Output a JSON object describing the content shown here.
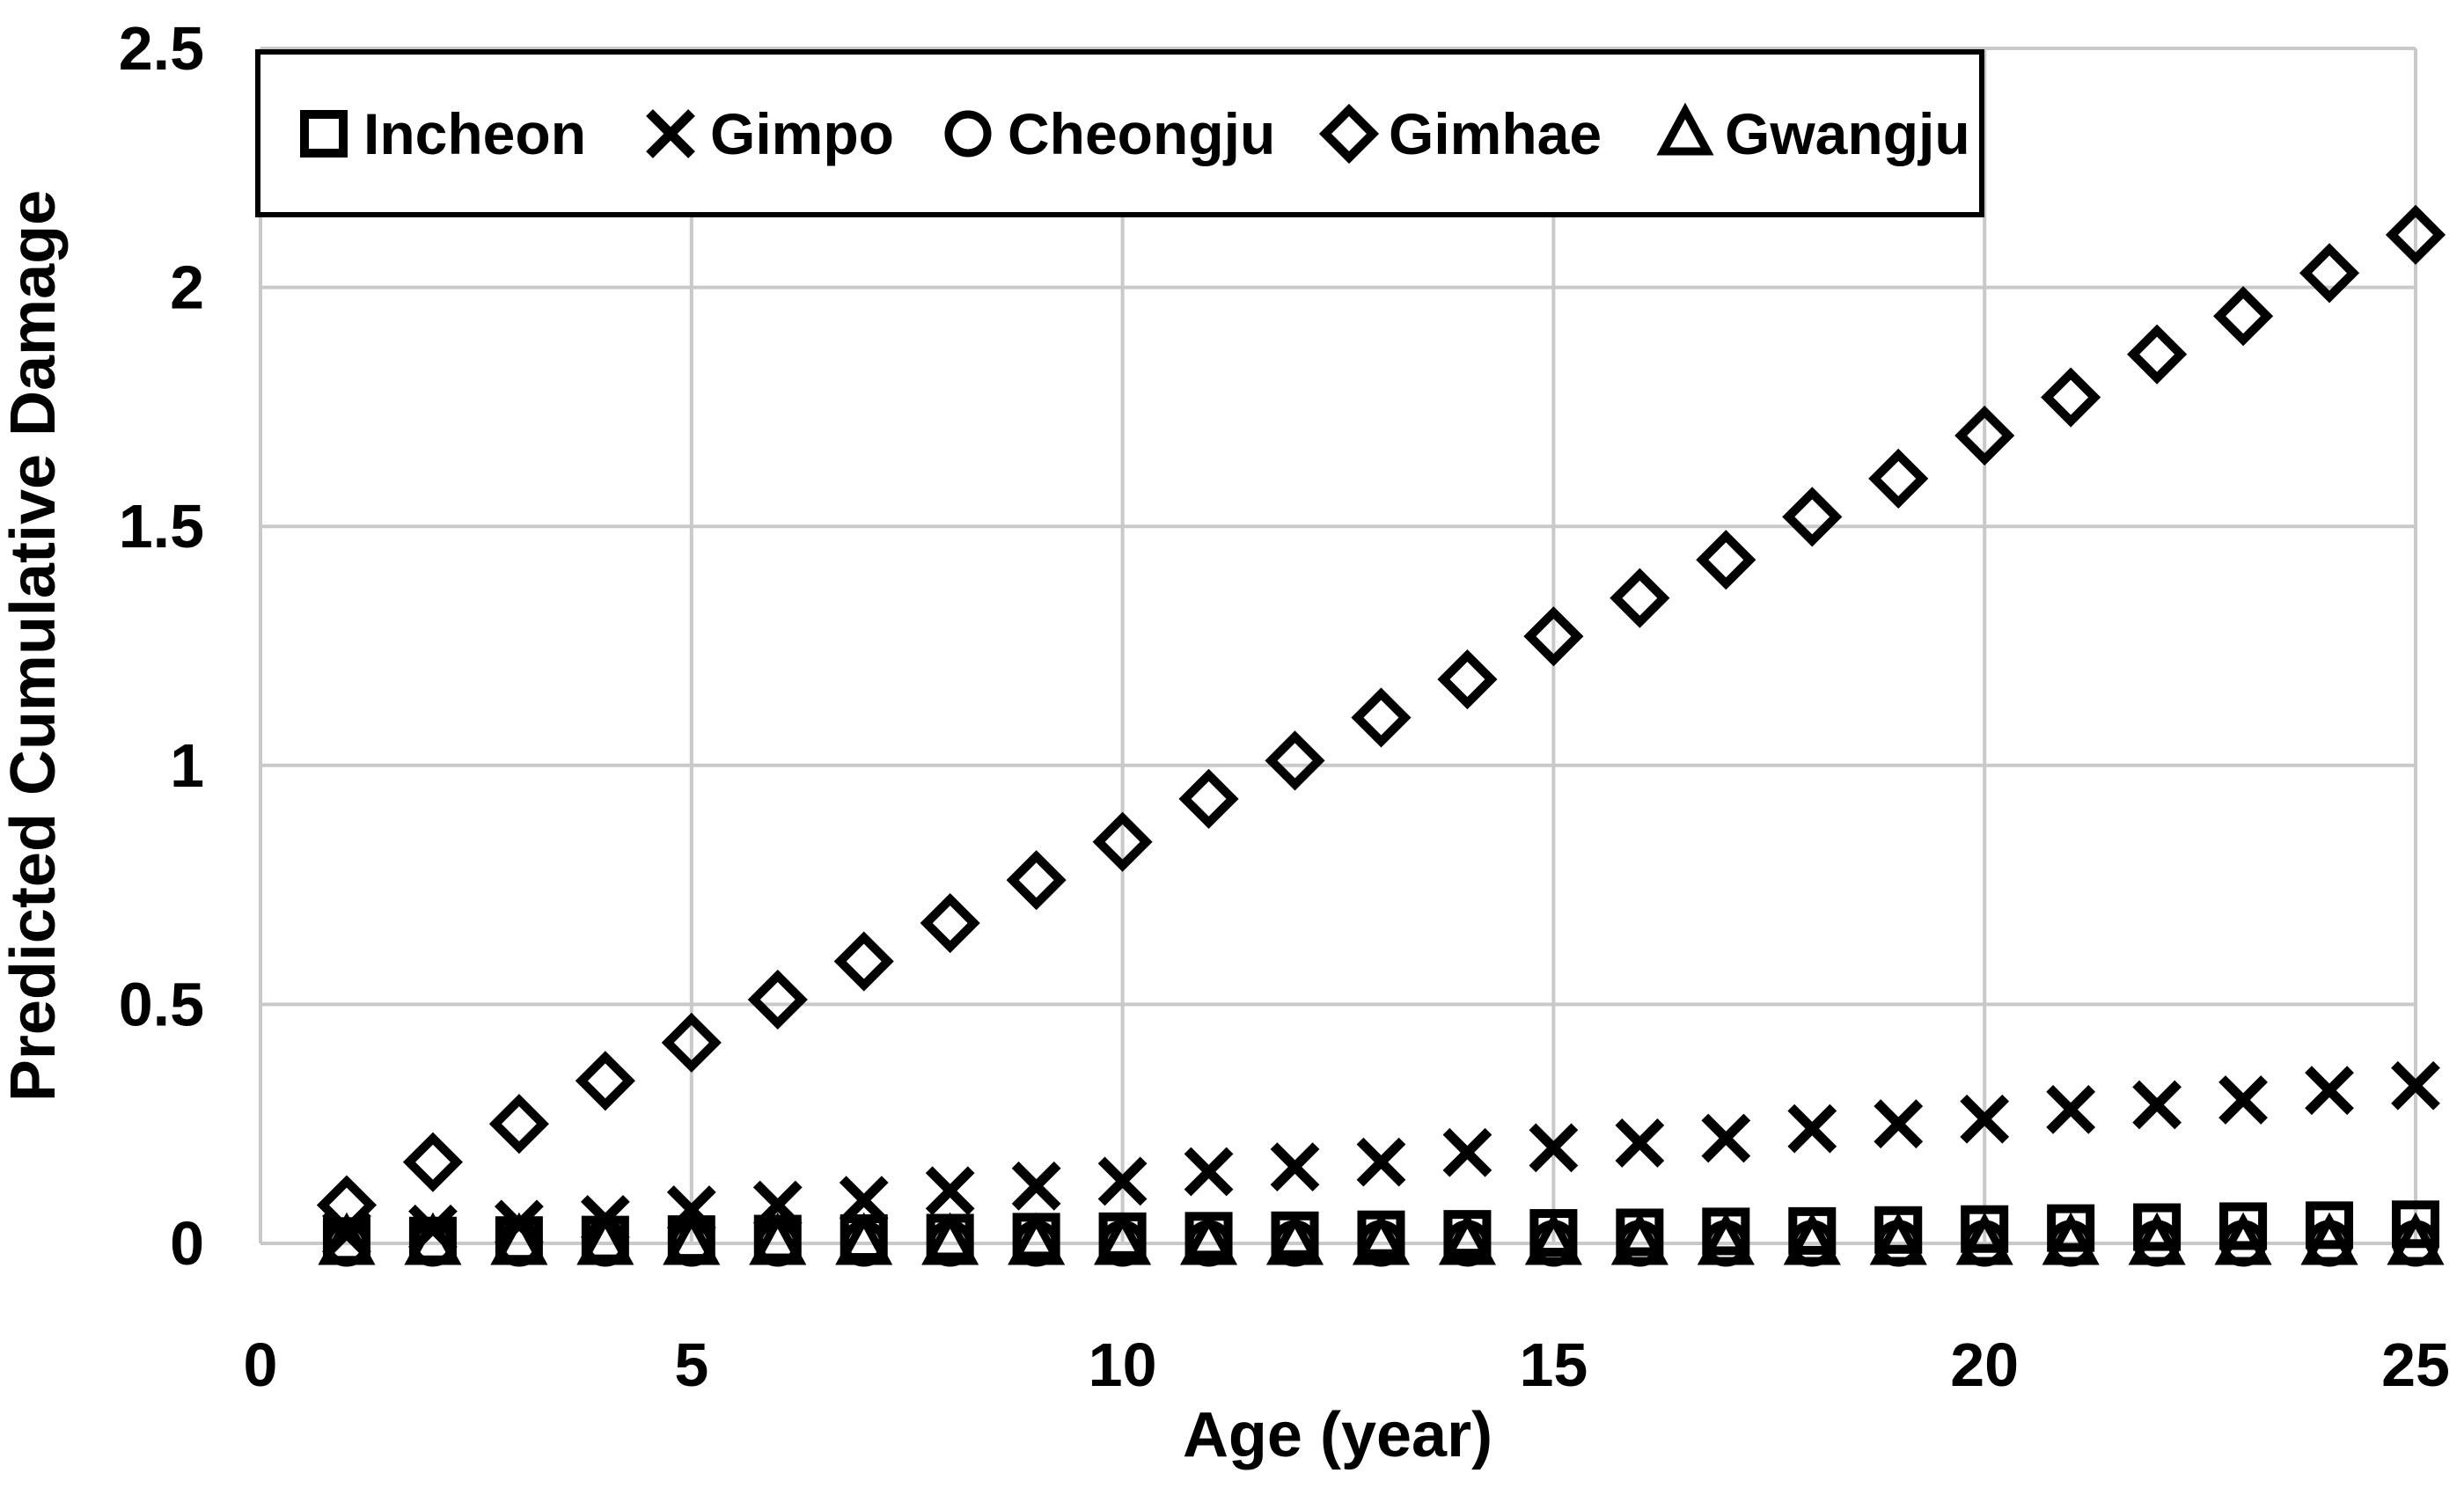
{
  "chart_data": {
    "type": "scatter",
    "title": "",
    "xlabel": "Age (year)",
    "ylabel": "Predicted Cumulative Damage",
    "xlim": [
      0,
      25
    ],
    "ylim": [
      0,
      2.5
    ],
    "x_ticks": [
      0,
      5,
      10,
      15,
      20,
      25
    ],
    "y_ticks": [
      0,
      0.5,
      1,
      1.5,
      2,
      2.5
    ],
    "y_tick_labels": [
      "0",
      "0.5",
      "1",
      "1.5",
      "2",
      "2.5"
    ],
    "x_tick_labels": [
      "0",
      "5",
      "10",
      "15",
      "20",
      "25"
    ],
    "grid": true,
    "legend_position": "top-inside",
    "x": [
      1,
      2,
      3,
      4,
      5,
      6,
      7,
      8,
      9,
      10,
      11,
      12,
      13,
      14,
      15,
      16,
      17,
      18,
      19,
      20,
      21,
      22,
      23,
      24,
      25
    ],
    "series": [
      {
        "name": "Incheon",
        "marker": "square",
        "values": [
          0.005,
          0.006,
          0.007,
          0.008,
          0.009,
          0.01,
          0.011,
          0.012,
          0.014,
          0.015,
          0.016,
          0.017,
          0.019,
          0.02,
          0.022,
          0.023,
          0.025,
          0.026,
          0.028,
          0.03,
          0.032,
          0.034,
          0.036,
          0.038,
          0.04
        ]
      },
      {
        "name": "Gimpo",
        "marker": "x",
        "values": [
          0.02,
          0.03,
          0.04,
          0.05,
          0.07,
          0.08,
          0.09,
          0.11,
          0.12,
          0.13,
          0.15,
          0.16,
          0.17,
          0.19,
          0.2,
          0.21,
          0.22,
          0.24,
          0.25,
          0.26,
          0.28,
          0.29,
          0.3,
          0.32,
          0.33
        ]
      },
      {
        "name": "Cheongju",
        "marker": "circle",
        "values": [
          0,
          0,
          0,
          0,
          0,
          0,
          0,
          0,
          0,
          0,
          0,
          0,
          0,
          0,
          0,
          0,
          0,
          0,
          0,
          0,
          0,
          0,
          0,
          0,
          0
        ]
      },
      {
        "name": "Gimhae",
        "marker": "diamond",
        "values": [
          0.08,
          0.17,
          0.25,
          0.34,
          0.42,
          0.51,
          0.59,
          0.67,
          0.76,
          0.84,
          0.93,
          1.01,
          1.1,
          1.18,
          1.27,
          1.35,
          1.43,
          1.52,
          1.6,
          1.69,
          1.77,
          1.86,
          1.94,
          2.03,
          2.11
        ]
      },
      {
        "name": "Gwangju",
        "marker": "triangle",
        "values": [
          0,
          0,
          0,
          0,
          0,
          0,
          0,
          0,
          0,
          0,
          0,
          0,
          0,
          0,
          0,
          0,
          0,
          0,
          0,
          0,
          0,
          0,
          0,
          0,
          0
        ]
      }
    ]
  },
  "colors": {
    "marker": "#000000",
    "grid": "#c9c9c9",
    "text": "#000000",
    "legend_border": "#000000",
    "background": "#ffffff"
  }
}
